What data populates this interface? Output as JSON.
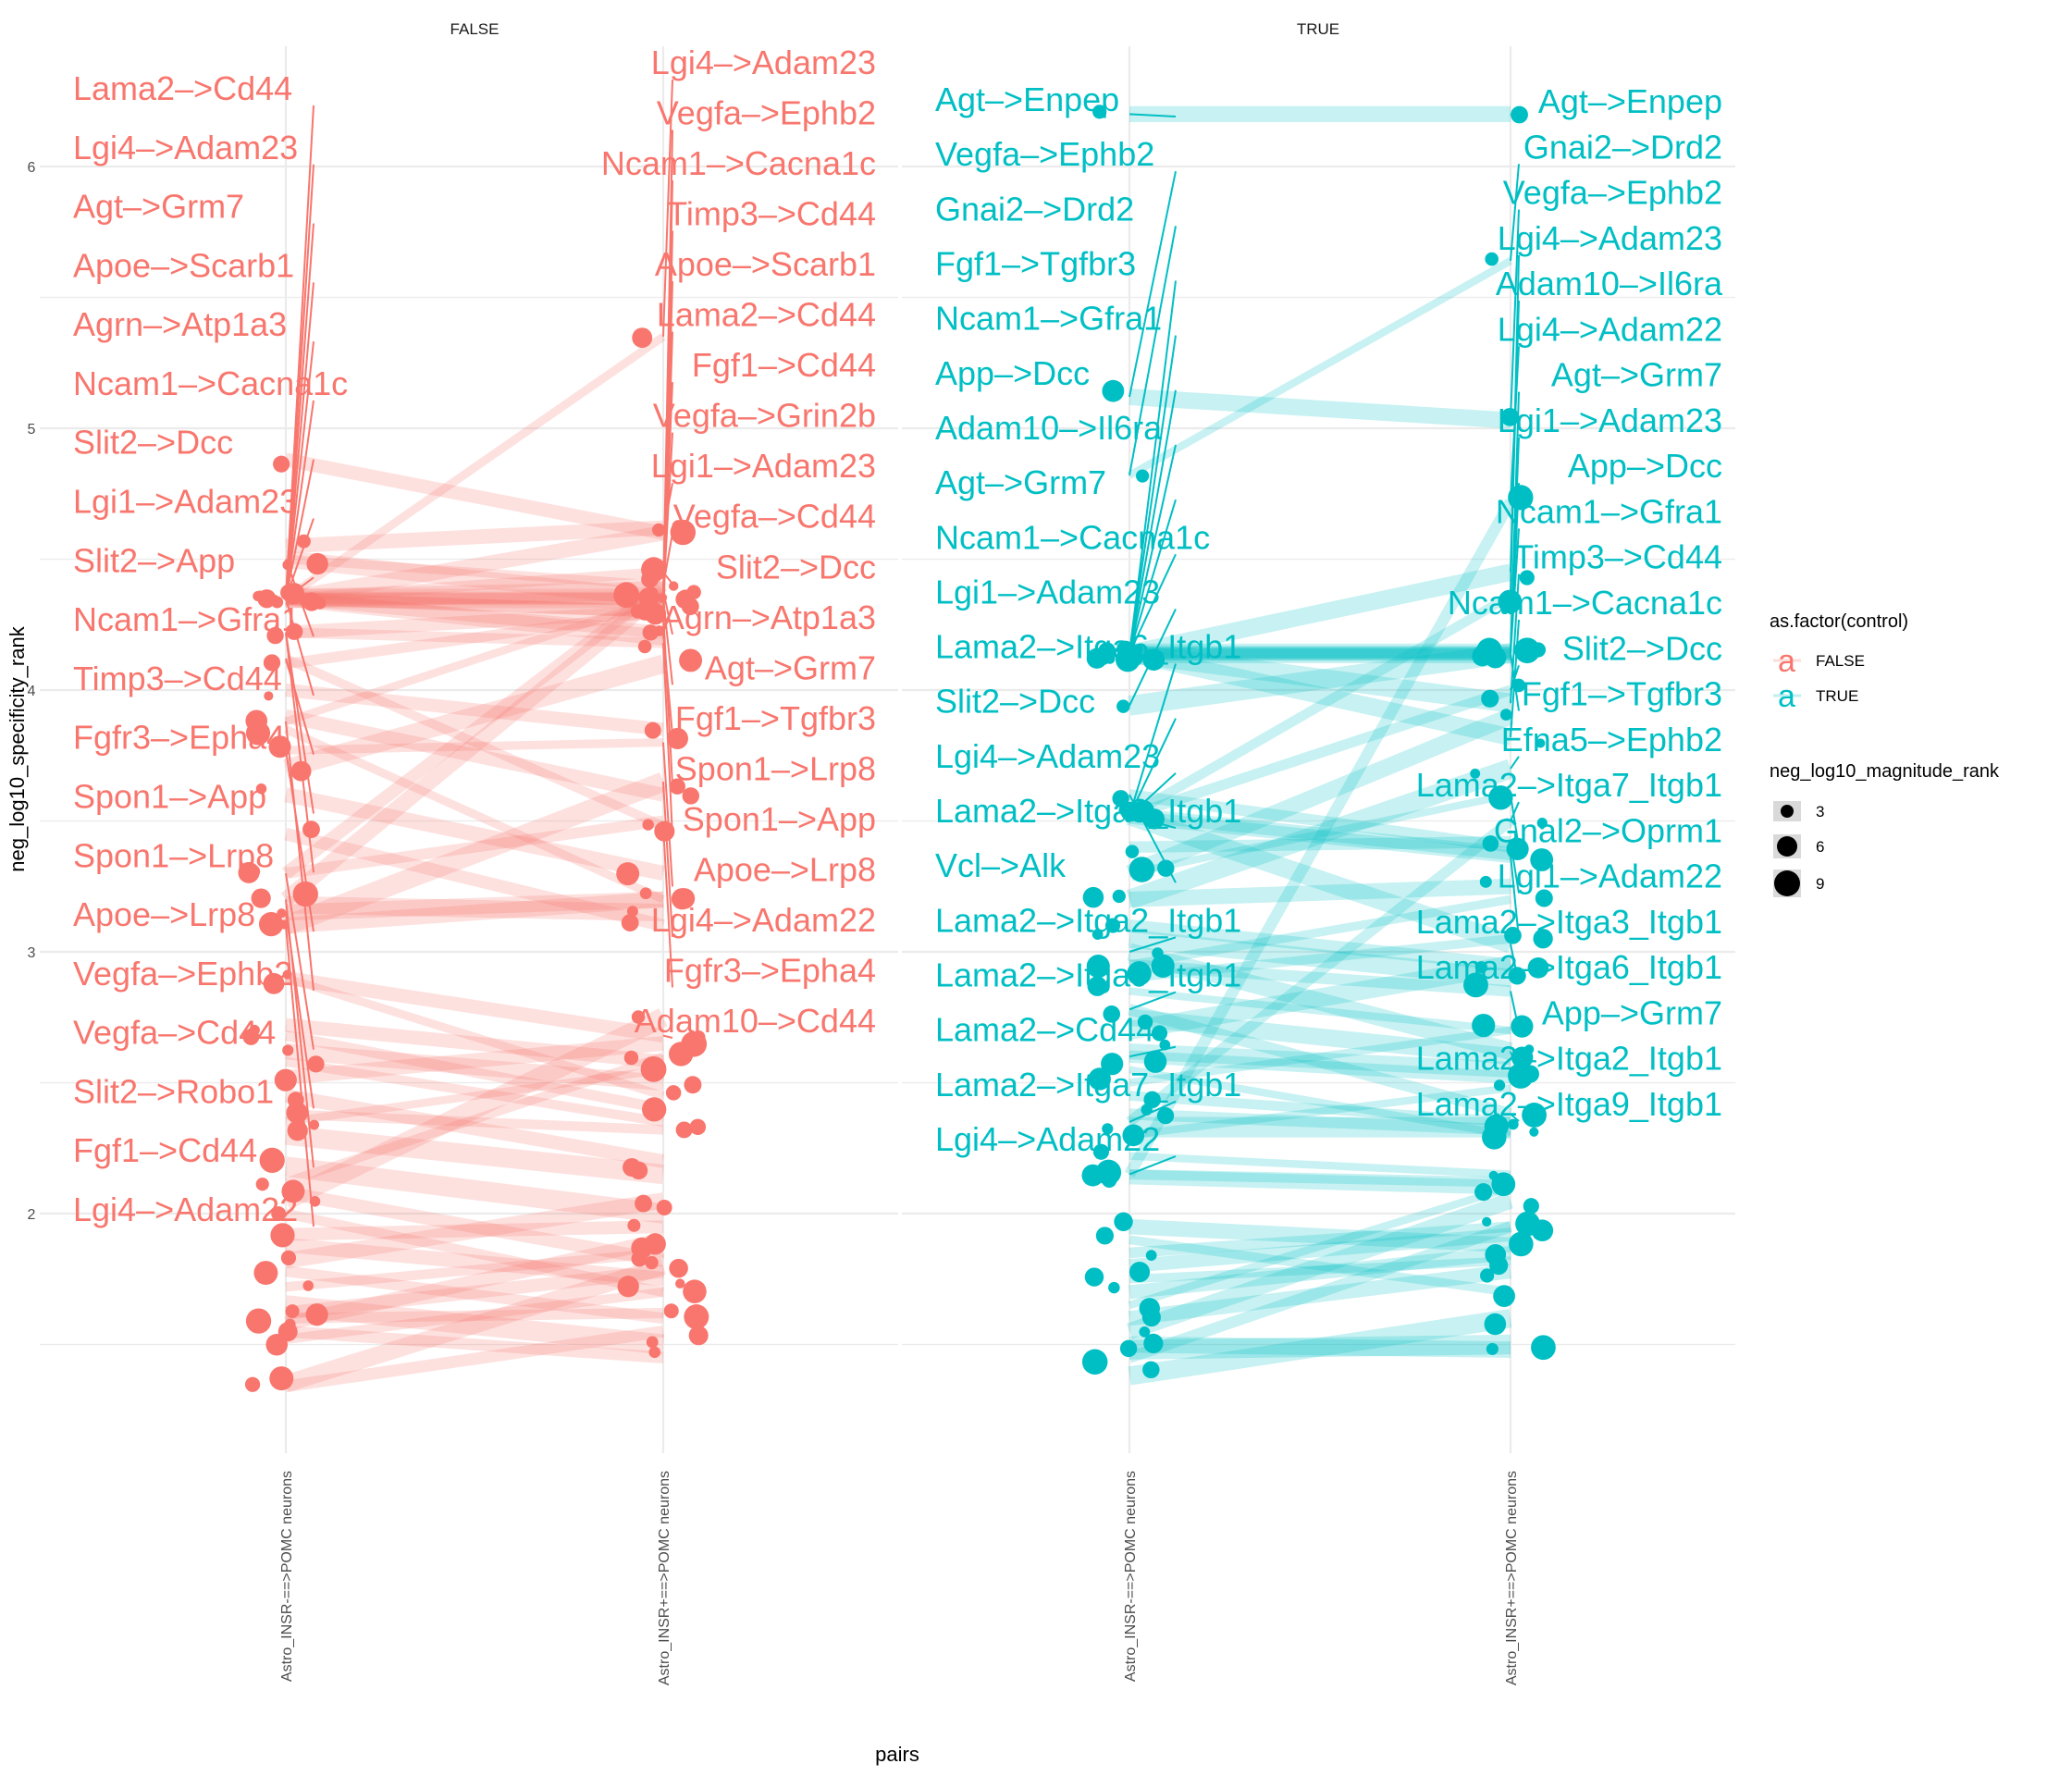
{
  "chart_data": {
    "type": "line",
    "subtype": "faceted slope chart with labeled points",
    "title": "",
    "xlabel": "pairs",
    "ylabel": "neg_log10_specificity_rank",
    "x_categories": [
      "Astro_INSR-==>POMC neurons",
      "Astro_INSR+==>POMC neurons"
    ],
    "ylim": [
      1.15,
      6.35
    ],
    "y_ticks": [
      2,
      3,
      4,
      5,
      6
    ],
    "grid": true,
    "facets": [
      {
        "name": "FALSE",
        "color": "#F8766D",
        "labeled_pairs": [
          {
            "label": "Lama2->Cd44",
            "left": 4.35,
            "right": 4.3
          },
          {
            "label": "Lgi4->Adam23",
            "left": 4.35,
            "right": 5.35
          },
          {
            "label": "Agt->Grm7",
            "left": 4.35,
            "right": 4.35
          },
          {
            "label": "Apoe->Scarb1",
            "left": 4.35,
            "right": 4.35
          },
          {
            "label": "Agrn->Atp1a3",
            "left": 4.35,
            "right": 4.38
          },
          {
            "label": "Ncam1->Cacna1c",
            "left": 4.35,
            "right": 4.35
          },
          {
            "label": "Slit2->Dcc",
            "left": 4.35,
            "right": 4.45
          },
          {
            "label": "Lgi1->Adam23",
            "left": 4.35,
            "right": 4.6
          },
          {
            "label": "Slit2->App",
            "left": 4.35,
            "right": 4.3
          },
          {
            "label": "Ncam1->Gfra1",
            "left": 4.5,
            "right": 4.35
          },
          {
            "label": "Timp3->Cd44",
            "left": 4.35,
            "right": 4.2
          },
          {
            "label": "Fgfr3->Epha4",
            "left": 4.12,
            "right": 3.48
          },
          {
            "label": "Spon1->App",
            "left": 4.22,
            "right": 4.18
          },
          {
            "label": "Spon1->Lrp8",
            "left": 4.22,
            "right": 4.3
          },
          {
            "label": "Apoe->Lrp8",
            "left": 3.77,
            "right": 3.8
          },
          {
            "label": "Vegfa->Ephb2",
            "left": 3.88,
            "right": 4.35
          },
          {
            "label": "Vegfa->Cd44",
            "left": 3.3,
            "right": 4.4
          },
          {
            "label": "Slit2->Robo1",
            "left": 3.15,
            "right": 3.2
          },
          {
            "label": "Fgf1->Cd44",
            "left": 3.2,
            "right": 4.38
          },
          {
            "label": "Lgi4->Adam22",
            "left": 3.1,
            "right": 3.65
          },
          {
            "label": "Vegfa->Grin2b",
            "left": 4.35,
            "right": 4.35
          },
          {
            "label": "Fgf1->Tgfbr3",
            "left": 4.35,
            "right": 4.22
          },
          {
            "label": "Adam10->Cd44",
            "left": 2.9,
            "right": 2.68
          }
        ],
        "left_labels": [
          "Lama2->Cd44",
          "Lgi4->Adam23",
          "Agt->Grm7",
          "Apoe->Scarb1",
          "Agrn->Atp1a3",
          "Ncam1->Cacna1c",
          "Slit2->Dcc",
          "Lgi1->Adam23",
          "Slit2->App",
          "Ncam1->Gfra1",
          "Timp3->Cd44",
          "Fgfr3->Epha4",
          "Spon1->App",
          "Spon1->Lrp8",
          "Apoe->Lrp8",
          "Vegfa->Ephb2",
          "Vegfa->Cd44",
          "Slit2->Robo1",
          "Fgf1->Cd44",
          "Lgi4->Adam22"
        ],
        "right_labels": [
          "Lgi4->Adam23",
          "Vegfa->Ephb2",
          "Ncam1->Cacna1c",
          "Timp3->Cd44",
          "Apoe->Scarb1",
          "Lama2->Cd44",
          "Fgf1->Cd44",
          "Vegfa->Grin2b",
          "Lgi1->Adam23",
          "Vegfa->Cd44",
          "Slit2->Dcc",
          "Agrn->Atp1a3",
          "Agt->Grm7",
          "Fgf1->Tgfbr3",
          "Spon1->Lrp8",
          "Spon1->App",
          "Apoe->Lrp8",
          "Lgi4->Adam22",
          "Fgfr3->Epha4",
          "Adam10->Cd44"
        ],
        "background_pairs": [
          [
            4.88,
            4.6
          ],
          [
            4.55,
            4.62
          ],
          [
            4.5,
            4.4
          ],
          [
            4.1,
            4.3
          ],
          [
            4.0,
            3.85
          ],
          [
            3.9,
            3.6
          ],
          [
            3.85,
            3.2
          ],
          [
            3.7,
            4.1
          ],
          [
            3.6,
            3.3
          ],
          [
            3.45,
            3.1
          ],
          [
            3.3,
            3.5
          ],
          [
            3.18,
            3.15
          ],
          [
            3.1,
            3.2
          ],
          [
            2.9,
            2.45
          ],
          [
            2.72,
            2.58
          ],
          [
            2.68,
            2.4
          ],
          [
            2.62,
            2.5
          ],
          [
            2.58,
            2.35
          ],
          [
            2.52,
            2.65
          ],
          [
            2.45,
            2.2
          ],
          [
            2.38,
            2.32
          ],
          [
            2.35,
            2.55
          ],
          [
            2.3,
            2.15
          ],
          [
            2.18,
            2.0
          ],
          [
            2.12,
            2.6
          ],
          [
            2.08,
            1.82
          ],
          [
            2.05,
            2.75
          ],
          [
            2.0,
            1.7
          ],
          [
            1.92,
            1.95
          ],
          [
            1.88,
            1.75
          ],
          [
            1.82,
            2.05
          ],
          [
            1.78,
            1.6
          ],
          [
            1.72,
            1.85
          ],
          [
            1.65,
            1.5
          ],
          [
            1.62,
            1.78
          ],
          [
            1.6,
            1.62
          ],
          [
            1.58,
            1.9
          ],
          [
            1.55,
            1.45
          ],
          [
            1.52,
            1.7
          ],
          [
            1.35,
            1.8
          ],
          [
            1.34,
            1.55
          ]
        ]
      },
      {
        "name": "TRUE",
        "color": "#00BFC4",
        "labeled_pairs": [
          {
            "label": "Agt->Enpep",
            "left": 6.2,
            "right": 6.2
          },
          {
            "label": "Vegfa->Ephb2",
            "left": 5.12,
            "right": 5.03
          },
          {
            "label": "Gnai2->Drd2",
            "left": 4.82,
            "right": 5.64
          },
          {
            "label": "Fgf1->Tgfbr3",
            "left": 4.14,
            "right": 4.14
          },
          {
            "label": "Ncam1->Gfra1",
            "left": 4.14,
            "right": 4.14
          },
          {
            "label": "App->Dcc",
            "left": 4.14,
            "right": 4.14
          },
          {
            "label": "Adam10->Il6ra",
            "left": 4.14,
            "right": 4.45
          },
          {
            "label": "Agt->Grm7",
            "left": 4.14,
            "right": 4.14
          },
          {
            "label": "Ncam1->Cacna1c",
            "left": 4.14,
            "right": 3.82
          },
          {
            "label": "Lgi1->Adam23",
            "left": 3.94,
            "right": 4.14
          },
          {
            "label": "Lama2->Itga6_Itgb1",
            "left": 3.52,
            "right": 3.03
          },
          {
            "label": "Slit2->Dcc",
            "left": 3.52,
            "right": 4.0
          },
          {
            "label": "Lgi4->Adam23",
            "left": 3.52,
            "right": 4.36
          },
          {
            "label": "Lama2->Itga3_Itgb1",
            "left": 3.52,
            "right": 3.37
          },
          {
            "label": "Vcl->Alk",
            "left": 3.6,
            "right": 3.4
          },
          {
            "label": "Lama2->Itga2_Itgb1",
            "left": 3.0,
            "right": 2.62
          },
          {
            "label": "Lama2->Itga9_Itgb1",
            "left": 2.78,
            "right": 2.38
          },
          {
            "label": "Lama2->Cd44",
            "left": 2.6,
            "right": 2.52
          },
          {
            "label": "Lama2->Itga7_Itgb1",
            "left": 2.35,
            "right": 3.5
          },
          {
            "label": "Lgi4->Adam22",
            "left": 2.15,
            "right": 4.72
          },
          {
            "label": "Timp3->Cd44",
            "left": 4.14,
            "right": 3.95
          },
          {
            "label": "Efna5->Ephb2",
            "left": 3.2,
            "right": 3.7
          },
          {
            "label": "Gnal2->Oprm1",
            "left": 3.3,
            "right": 3.6
          },
          {
            "label": "Lgi1->Adam22",
            "left": 3.4,
            "right": 3.42
          },
          {
            "label": "App->Grm7",
            "left": 2.95,
            "right": 2.85
          }
        ],
        "left_labels": [
          "Agt->Enpep",
          "Vegfa->Ephb2",
          "Gnai2->Drd2",
          "Fgf1->Tgfbr3",
          "Ncam1->Gfra1",
          "App->Dcc",
          "Adam10->Il6ra",
          "Agt->Grm7",
          "Ncam1->Cacna1c",
          "Lgi1->Adam23",
          "Lama2->Itga6_Itgb1",
          "Slit2->Dcc",
          "Lgi4->Adam23",
          "Lama2->Itga3_Itgb1",
          "Vcl->Alk",
          "Lama2->Itga2_Itgb1",
          "Lama2->Itga9_Itgb1",
          "Lama2->Cd44",
          "Lama2->Itga7_Itgb1",
          "Lgi4->Adam22"
        ],
        "right_labels": [
          "Agt->Enpep",
          "Gnai2->Drd2",
          "Vegfa->Ephb2",
          "Lgi4->Adam23",
          "Adam10->Il6ra",
          "Lgi4->Adam22",
          "Agt->Grm7",
          "Lgi1->Adam23",
          "App->Dcc",
          "Ncam1->Gfra1",
          "Timp3->Cd44",
          "Ncam1->Cacna1c",
          "Slit2->Dcc",
          "Fgf1->Tgfbr3",
          "Efna5->Ephb2",
          "Lama2->Itga7_Itgb1",
          "Gnal2->Oprm1",
          "Lgi1->Adam22",
          "Lama2->Itga3_Itgb1",
          "Lama2->Itga6_Itgb1",
          "App->Grm7",
          "Lama2->Itga2_Itgb1",
          "Lama2->Itga9_Itgb1"
        ],
        "background_pairs": [
          [
            4.14,
            4.14
          ],
          [
            4.14,
            4.14
          ],
          [
            3.52,
            3.37
          ],
          [
            3.3,
            3.9
          ],
          [
            3.2,
            3.25
          ],
          [
            3.1,
            2.95
          ],
          [
            3.05,
            2.9
          ],
          [
            2.95,
            3.2
          ],
          [
            2.9,
            3.05
          ],
          [
            2.85,
            2.7
          ],
          [
            2.75,
            2.6
          ],
          [
            2.7,
            2.95
          ],
          [
            2.62,
            2.55
          ],
          [
            2.55,
            2.3
          ],
          [
            2.5,
            2.7
          ],
          [
            2.45,
            2.35
          ],
          [
            2.38,
            2.32
          ],
          [
            2.33,
            2.33
          ],
          [
            2.3,
            2.48
          ],
          [
            2.22,
            2.15
          ],
          [
            2.15,
            2.12
          ],
          [
            2.14,
            2.1
          ],
          [
            1.95,
            1.88
          ],
          [
            1.9,
            1.7
          ],
          [
            1.85,
            1.95
          ],
          [
            1.8,
            1.92
          ],
          [
            1.75,
            1.82
          ],
          [
            1.7,
            1.85
          ],
          [
            1.65,
            2.1
          ],
          [
            1.6,
            1.78
          ],
          [
            1.55,
            2.05
          ],
          [
            1.5,
            1.48
          ],
          [
            1.48,
            1.5
          ],
          [
            1.45,
            1.95
          ],
          [
            1.38,
            1.6
          ]
        ]
      }
    ],
    "legend": {
      "position": "right",
      "color_title": "as.factor(control)",
      "color_entries": [
        {
          "label": "FALSE",
          "color": "#F8766D",
          "glyph": "a"
        },
        {
          "label": "TRUE",
          "color": "#00BFC4",
          "glyph": "a"
        }
      ],
      "size_title": "neg_log10_magnitude_rank",
      "size_entries": [
        3,
        6,
        9
      ]
    }
  }
}
